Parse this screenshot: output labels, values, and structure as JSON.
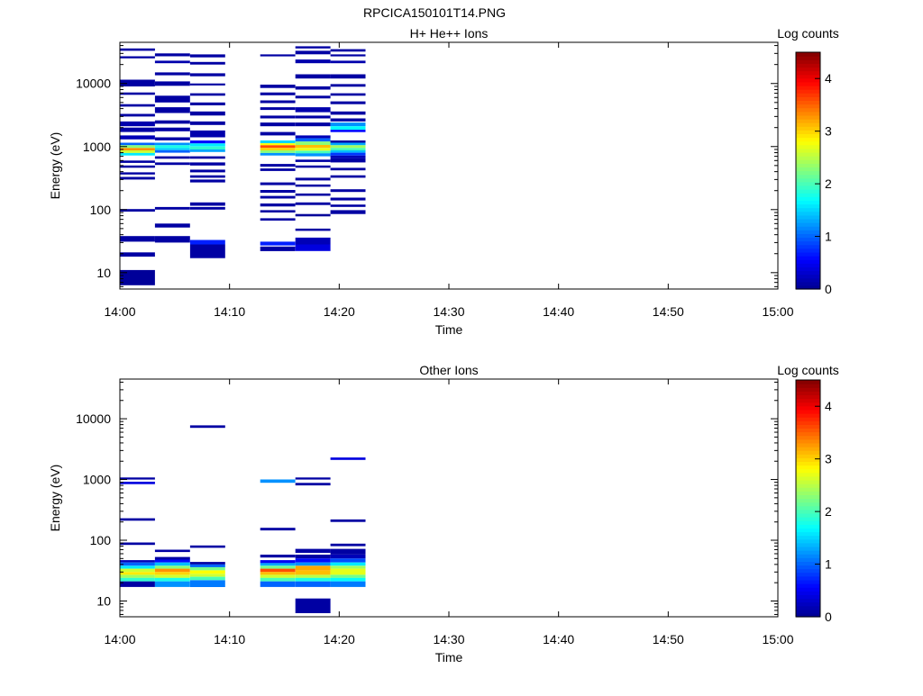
{
  "figure_title": "RPCICA150101T14.PNG",
  "colors": {
    "axis": "#000000",
    "colormap": [
      "#00008f",
      "#0000ff",
      "#0080ff",
      "#00ffff",
      "#80ff80",
      "#ffff00",
      "#ff8000",
      "#ff0000",
      "#800000"
    ]
  },
  "chart_data": [
    {
      "type": "heatmap",
      "title": "H+ He++ Ions",
      "xlabel": "Time",
      "ylabel": "Energy (eV)",
      "x_ticks": [
        "14:00",
        "14:10",
        "14:20",
        "14:30",
        "14:40",
        "14:50",
        "15:00"
      ],
      "x_range": [
        "14:00",
        "15:00"
      ],
      "y_scale": "log",
      "y_range": [
        5.5,
        45000
      ],
      "y_ticks": [
        "10",
        "100",
        "1000",
        "10000"
      ],
      "colorbar": {
        "label": "Log counts",
        "range": [
          0,
          4.5
        ],
        "ticks": [
          "0",
          "1",
          "2",
          "3",
          "4"
        ]
      },
      "time_bins": [
        {
          "start": "14:00.0",
          "end": "14:03.2"
        },
        {
          "start": "14:03.2",
          "end": "14:06.4"
        },
        {
          "start": "14:06.4",
          "end": "14:09.6"
        },
        {
          "start": "14:12.8",
          "end": "14:16.0"
        },
        {
          "start": "14:16.0",
          "end": "14:19.2"
        },
        {
          "start": "14:19.2",
          "end": "14:22.4"
        }
      ],
      "cells": [
        [
          0,
          36000,
          33000,
          0.1
        ],
        [
          0,
          27000,
          25000,
          0.1
        ],
        [
          0,
          11500,
          9000,
          0.1
        ],
        [
          0,
          7200,
          6600,
          0.1
        ],
        [
          0,
          4700,
          4300,
          0.1
        ],
        [
          0,
          3300,
          3000,
          0.1
        ],
        [
          0,
          2500,
          2100,
          0.15
        ],
        [
          0,
          2000,
          1700,
          0.1
        ],
        [
          0,
          1500,
          1300,
          0.2
        ],
        [
          0,
          1150,
          1050,
          1.0
        ],
        [
          0,
          1050,
          950,
          2.3
        ],
        [
          0,
          950,
          870,
          3.3
        ],
        [
          0,
          870,
          790,
          2.6
        ],
        [
          0,
          790,
          720,
          1.6
        ],
        [
          0,
          600,
          550,
          0.1
        ],
        [
          0,
          500,
          460,
          0.1
        ],
        [
          0,
          390,
          360,
          0.1
        ],
        [
          0,
          330,
          300,
          0.1
        ],
        [
          0,
          102,
          93,
          0.1
        ],
        [
          0,
          38,
          31,
          0.1
        ],
        [
          0,
          21,
          18,
          0.1
        ],
        [
          0,
          11,
          6.3,
          0.05
        ],
        [
          1,
          30000,
          27000,
          0.1
        ],
        [
          1,
          23000,
          21000,
          0.15
        ],
        [
          1,
          15000,
          13500,
          0.1
        ],
        [
          1,
          10800,
          9200,
          0.1
        ],
        [
          1,
          6400,
          5000,
          0.1
        ],
        [
          1,
          4200,
          3400,
          0.1
        ],
        [
          1,
          2600,
          2300,
          0.1
        ],
        [
          1,
          2000,
          1750,
          0.1
        ],
        [
          1,
          1400,
          1250,
          0.1
        ],
        [
          1,
          1150,
          1050,
          1.2
        ],
        [
          1,
          1050,
          950,
          1.8
        ],
        [
          1,
          950,
          880,
          1.5
        ],
        [
          1,
          880,
          800,
          1.0
        ],
        [
          1,
          700,
          640,
          0.1
        ],
        [
          1,
          560,
          510,
          0.1
        ],
        [
          1,
          110,
          100,
          0.1
        ],
        [
          1,
          60,
          52,
          0.1
        ],
        [
          1,
          38,
          30,
          0.1
        ],
        [
          2,
          29000,
          26000,
          0.1
        ],
        [
          2,
          22000,
          20000,
          0.1
        ],
        [
          2,
          14500,
          13000,
          0.1
        ],
        [
          2,
          10000,
          9300,
          0.1
        ],
        [
          2,
          7000,
          6400,
          0.1
        ],
        [
          2,
          5000,
          4500,
          0.1
        ],
        [
          2,
          3600,
          3100,
          0.1
        ],
        [
          2,
          2500,
          2200,
          0.1
        ],
        [
          2,
          1800,
          1400,
          0.15
        ],
        [
          2,
          1250,
          1120,
          0.6
        ],
        [
          2,
          1120,
          1000,
          1.6
        ],
        [
          2,
          1000,
          900,
          1.9
        ],
        [
          2,
          900,
          820,
          1.3
        ],
        [
          2,
          700,
          640,
          0.1
        ],
        [
          2,
          560,
          500,
          0.1
        ],
        [
          2,
          430,
          390,
          0.1
        ],
        [
          2,
          350,
          320,
          0.1
        ],
        [
          2,
          300,
          270,
          0.1
        ],
        [
          2,
          130,
          115,
          0.1
        ],
        [
          2,
          110,
          100,
          0.1
        ],
        [
          2,
          33,
          28,
          0.7
        ],
        [
          2,
          28,
          17,
          0.1
        ],
        [
          3,
          29000,
          27000,
          0.1
        ],
        [
          3,
          9600,
          8500,
          0.1
        ],
        [
          3,
          7200,
          6500,
          0.1
        ],
        [
          3,
          5400,
          4900,
          0.1
        ],
        [
          3,
          4200,
          3800,
          0.1
        ],
        [
          3,
          3100,
          2800,
          0.1
        ],
        [
          3,
          2400,
          2100,
          0.1
        ],
        [
          3,
          1700,
          1500,
          0.1
        ],
        [
          3,
          1250,
          1130,
          1.5
        ],
        [
          3,
          1130,
          1050,
          2.8
        ],
        [
          3,
          1050,
          950,
          3.6
        ],
        [
          3,
          950,
          870,
          3.0
        ],
        [
          3,
          870,
          790,
          2.3
        ],
        [
          3,
          790,
          720,
          1.2
        ],
        [
          3,
          530,
          480,
          0.1
        ],
        [
          3,
          450,
          410,
          0.1
        ],
        [
          3,
          270,
          245,
          0.1
        ],
        [
          3,
          205,
          185,
          0.1
        ],
        [
          3,
          165,
          150,
          0.1
        ],
        [
          3,
          125,
          112,
          0.1
        ],
        [
          3,
          98,
          90,
          0.1
        ],
        [
          3,
          73,
          67,
          0.1
        ],
        [
          3,
          31,
          27,
          0.7
        ],
        [
          3,
          26,
          22,
          0.1
        ],
        [
          4,
          39000,
          36000,
          0.1
        ],
        [
          4,
          33000,
          29000,
          0.1
        ],
        [
          4,
          24000,
          21000,
          0.15
        ],
        [
          4,
          14000,
          12000,
          0.1
        ],
        [
          4,
          9000,
          8000,
          0.1
        ],
        [
          4,
          6400,
          5800,
          0.1
        ],
        [
          4,
          4200,
          3500,
          0.15
        ],
        [
          4,
          3100,
          2800,
          0.1
        ],
        [
          4,
          2400,
          2100,
          0.1
        ],
        [
          4,
          1500,
          1350,
          0.2
        ],
        [
          4,
          1350,
          1200,
          1.0
        ],
        [
          4,
          1200,
          1060,
          2.3
        ],
        [
          4,
          1060,
          950,
          3.1
        ],
        [
          4,
          950,
          860,
          2.7
        ],
        [
          4,
          860,
          780,
          2.0
        ],
        [
          4,
          780,
          700,
          1.2
        ],
        [
          4,
          620,
          570,
          0.1
        ],
        [
          4,
          500,
          460,
          0.1
        ],
        [
          4,
          320,
          290,
          0.1
        ],
        [
          4,
          250,
          230,
          0.1
        ],
        [
          4,
          180,
          165,
          0.1
        ],
        [
          4,
          130,
          118,
          0.1
        ],
        [
          4,
          85,
          78,
          0.05
        ],
        [
          4,
          50,
          46,
          0.1
        ],
        [
          4,
          36,
          28,
          0.2
        ],
        [
          4,
          28,
          22,
          0.4
        ],
        [
          5,
          35000,
          32000,
          0.1
        ],
        [
          5,
          29000,
          27000,
          0.1
        ],
        [
          5,
          23000,
          21000,
          0.15
        ],
        [
          5,
          14000,
          12000,
          0.1
        ],
        [
          5,
          9800,
          8900,
          0.1
        ],
        [
          5,
          7000,
          6400,
          0.1
        ],
        [
          5,
          5200,
          4700,
          0.1
        ],
        [
          5,
          3600,
          3200,
          0.1
        ],
        [
          5,
          2800,
          2500,
          0.1
        ],
        [
          5,
          2400,
          2100,
          1.2
        ],
        [
          5,
          2100,
          1850,
          1.7
        ],
        [
          5,
          1850,
          1700,
          0.6
        ],
        [
          5,
          1250,
          1150,
          0.1
        ],
        [
          5,
          1150,
          1050,
          1.3
        ],
        [
          5,
          1050,
          950,
          2.4
        ],
        [
          5,
          950,
          870,
          2.0
        ],
        [
          5,
          870,
          800,
          1.4
        ],
        [
          5,
          800,
          720,
          0.8
        ],
        [
          5,
          720,
          650,
          0.2
        ],
        [
          5,
          650,
          560,
          0.1
        ],
        [
          5,
          460,
          420,
          0.1
        ],
        [
          5,
          350,
          320,
          0.1
        ],
        [
          5,
          210,
          190,
          0.1
        ],
        [
          5,
          155,
          140,
          0.1
        ],
        [
          5,
          120,
          110,
          0.1
        ],
        [
          5,
          98,
          85,
          0.1
        ]
      ]
    },
    {
      "type": "heatmap",
      "title": "Other Ions",
      "xlabel": "Time",
      "ylabel": "Energy (eV)",
      "x_ticks": [
        "14:00",
        "14:10",
        "14:20",
        "14:30",
        "14:40",
        "14:50",
        "15:00"
      ],
      "x_range": [
        "14:00",
        "15:00"
      ],
      "y_scale": "log",
      "y_range": [
        5.5,
        45000
      ],
      "y_ticks": [
        "10",
        "100",
        "1000",
        "10000"
      ],
      "colorbar": {
        "label": "Log counts",
        "range": [
          0,
          4.5
        ],
        "ticks": [
          "0",
          "1",
          "2",
          "3",
          "4"
        ]
      },
      "time_bins": [
        {
          "start": "14:00.0",
          "end": "14:03.2"
        },
        {
          "start": "14:03.2",
          "end": "14:06.4"
        },
        {
          "start": "14:06.4",
          "end": "14:09.6"
        },
        {
          "start": "14:12.8",
          "end": "14:16.0"
        },
        {
          "start": "14:16.0",
          "end": "14:19.2"
        },
        {
          "start": "14:19.2",
          "end": "14:22.4"
        }
      ],
      "cells": [
        [
          0,
          1080,
          1000,
          0.1
        ],
        [
          0,
          920,
          840,
          0.4
        ],
        [
          0,
          230,
          210,
          0.1
        ],
        [
          0,
          92,
          84,
          0.1
        ],
        [
          0,
          47,
          43,
          0.2
        ],
        [
          0,
          43,
          38,
          1.0
        ],
        [
          0,
          38,
          34,
          1.6
        ],
        [
          0,
          34,
          30,
          2.6
        ],
        [
          0,
          30,
          27,
          2.9
        ],
        [
          0,
          27,
          24,
          2.4
        ],
        [
          0,
          24,
          21,
          1.9
        ],
        [
          0,
          21,
          17,
          0.1
        ],
        [
          1,
          70,
          64,
          0.1
        ],
        [
          1,
          53,
          48,
          0.1
        ],
        [
          1,
          48,
          43,
          0.6
        ],
        [
          1,
          43,
          38,
          1.4
        ],
        [
          1,
          38,
          34,
          2.3
        ],
        [
          1,
          34,
          30,
          3.3
        ],
        [
          1,
          30,
          27,
          3.0
        ],
        [
          1,
          27,
          24,
          2.6
        ],
        [
          1,
          24,
          21,
          1.8
        ],
        [
          1,
          21,
          17,
          1.2
        ],
        [
          2,
          7800,
          7100,
          0.1
        ],
        [
          2,
          82,
          75,
          0.1
        ],
        [
          2,
          44,
          40,
          0.1
        ],
        [
          2,
          40,
          36,
          1.0
        ],
        [
          2,
          36,
          32,
          2.2
        ],
        [
          2,
          32,
          28,
          2.8
        ],
        [
          2,
          28,
          25,
          2.6
        ],
        [
          2,
          25,
          22,
          2.0
        ],
        [
          2,
          22,
          17,
          1.1
        ],
        [
          3,
          1000,
          880,
          1.2
        ],
        [
          3,
          160,
          145,
          0.1
        ],
        [
          3,
          58,
          52,
          0.1
        ],
        [
          3,
          47,
          42,
          0.5
        ],
        [
          3,
          42,
          38,
          1.3
        ],
        [
          3,
          38,
          34,
          2.2
        ],
        [
          3,
          34,
          30,
          3.6
        ],
        [
          3,
          30,
          27,
          3.1
        ],
        [
          3,
          27,
          24,
          2.6
        ],
        [
          3,
          24,
          21,
          2.0
        ],
        [
          3,
          21,
          17,
          1.0
        ],
        [
          4,
          1080,
          1000,
          0.1
        ],
        [
          4,
          880,
          800,
          0.1
        ],
        [
          4,
          72,
          62,
          0.1
        ],
        [
          4,
          58,
          50,
          0.1
        ],
        [
          4,
          50,
          43,
          0.6
        ],
        [
          4,
          43,
          38,
          1.2
        ],
        [
          4,
          38,
          32,
          3.2
        ],
        [
          4,
          32,
          27,
          3.1
        ],
        [
          4,
          27,
          24,
          2.5
        ],
        [
          4,
          24,
          21,
          1.8
        ],
        [
          4,
          21,
          17,
          1.0
        ],
        [
          4,
          11,
          6.3,
          0.1
        ],
        [
          5,
          2300,
          2100,
          0.4
        ],
        [
          5,
          220,
          200,
          0.1
        ],
        [
          5,
          88,
          80,
          0.1
        ],
        [
          5,
          72,
          58,
          0.1
        ],
        [
          5,
          58,
          50,
          0.2
        ],
        [
          5,
          50,
          43,
          0.9
        ],
        [
          5,
          43,
          38,
          1.6
        ],
        [
          5,
          38,
          34,
          2.4
        ],
        [
          5,
          34,
          27,
          2.7
        ],
        [
          5,
          27,
          24,
          2.2
        ],
        [
          5,
          24,
          21,
          1.7
        ],
        [
          5,
          21,
          17,
          1.1
        ]
      ]
    }
  ]
}
